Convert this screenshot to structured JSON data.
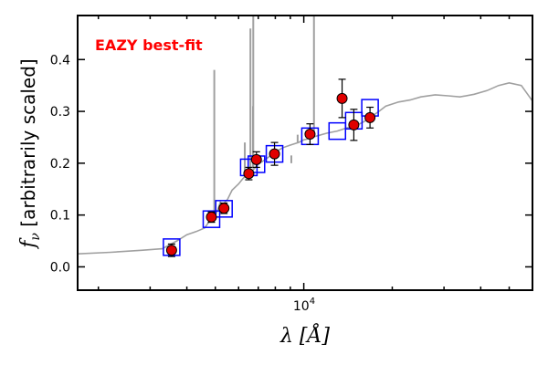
{
  "chart_data": {
    "type": "scatter",
    "xscale": "log",
    "xlim": [
      1700,
      60000
    ],
    "ylim": [
      -0.045,
      0.485
    ],
    "yticks": [
      0.0,
      0.1,
      0.2,
      0.3,
      0.4
    ],
    "ytick_labels": [
      "0.0",
      "0.1",
      "0.2",
      "0.3",
      "0.4"
    ],
    "xtick_label": "10^4",
    "xtick_base": "10",
    "xtick_exp": "4",
    "xlabel": "λ [Å]",
    "ylabel_main": "f",
    "ylabel_sub": "ν",
    "ylabel_rest": " [arbitrarily scaled]",
    "annotation": "EAZY best-fit",
    "annotation_color": "#ff0000",
    "colors": {
      "template": "#a0a0a0",
      "observed_face": "#e00000",
      "observed_edge": "#000000",
      "model": "#0000ff"
    },
    "series": [
      {
        "kind": "template",
        "x": [
          1700,
          2200,
          2800,
          3300,
          3700,
          4000,
          4300,
          4600,
          4800,
          5000,
          5100,
          5200,
          5300,
          5500,
          5700,
          6000,
          6200,
          6400,
          6600,
          6800,
          7000,
          7300,
          7600,
          8000,
          8500,
          9000,
          9600,
          10000,
          10500,
          11000,
          12000,
          13000,
          14000,
          15000,
          16000,
          17000,
          18000,
          19000,
          21000,
          23000,
          25000,
          28000,
          31000,
          34000,
          38000,
          42000,
          46000,
          50000,
          55000,
          60000
        ],
        "y": [
          0.025,
          0.028,
          0.032,
          0.035,
          0.05,
          0.062,
          0.068,
          0.075,
          0.09,
          0.1,
          0.11,
          0.125,
          0.12,
          0.13,
          0.148,
          0.16,
          0.17,
          0.178,
          0.182,
          0.19,
          0.198,
          0.205,
          0.212,
          0.222,
          0.23,
          0.235,
          0.24,
          0.245,
          0.248,
          0.252,
          0.258,
          0.262,
          0.268,
          0.272,
          0.28,
          0.29,
          0.3,
          0.31,
          0.318,
          0.322,
          0.328,
          0.332,
          0.33,
          0.328,
          0.333,
          0.34,
          0.35,
          0.355,
          0.35,
          0.32
        ]
      },
      {
        "kind": "emission_lines",
        "x": [
          4960,
          6300,
          6583,
          6716,
          6731,
          9070,
          9530,
          10830
        ],
        "y0": [
          0.1,
          0.175,
          0.18,
          0.19,
          0.19,
          0.2,
          0.24,
          0.25
        ],
        "y1": [
          0.38,
          0.24,
          0.46,
          0.31,
          0.485,
          0.215,
          0.255,
          0.485
        ]
      },
      {
        "kind": "model",
        "x": [
          3550,
          4850,
          5350,
          6500,
          6900,
          7950,
          10500,
          13000,
          14800,
          16800
        ],
        "y": [
          0.038,
          0.092,
          0.112,
          0.192,
          0.198,
          0.218,
          0.252,
          0.262,
          0.282,
          0.307
        ]
      },
      {
        "kind": "observed",
        "x": [
          3550,
          4850,
          5350,
          6500,
          6900,
          7950,
          10500,
          13500,
          14800,
          16800
        ],
        "y": [
          0.032,
          0.096,
          0.113,
          0.18,
          0.207,
          0.218,
          0.256,
          0.325,
          0.274,
          0.288
        ],
        "err": [
          0.012,
          0.01,
          0.01,
          0.012,
          0.015,
          0.022,
          0.02,
          0.037,
          0.03,
          0.02
        ]
      }
    ]
  }
}
